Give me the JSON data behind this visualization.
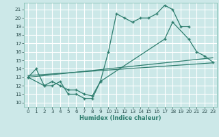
{
  "bg_color": "#cce8e8",
  "grid_color": "#ffffff",
  "line_color": "#2e7d6e",
  "xlabel": "Humidex (Indice chaleur)",
  "xlim": [
    -0.5,
    23.5
  ],
  "ylim": [
    9.5,
    21.8
  ],
  "xticks": [
    0,
    1,
    2,
    3,
    4,
    5,
    6,
    7,
    8,
    9,
    10,
    11,
    12,
    13,
    14,
    15,
    16,
    17,
    18,
    19,
    20,
    21,
    22,
    23
  ],
  "yticks": [
    10,
    11,
    12,
    13,
    14,
    15,
    16,
    17,
    18,
    19,
    20,
    21
  ],
  "line1_x": [
    0,
    1,
    2,
    3,
    4,
    5,
    6,
    7,
    8,
    9,
    10,
    11,
    12,
    13,
    14,
    15,
    16,
    17,
    18,
    19,
    20
  ],
  "line1_y": [
    13,
    14,
    12,
    12,
    12.5,
    11,
    11,
    10.5,
    10.5,
    12.5,
    16,
    20.5,
    20,
    19.5,
    20,
    20,
    20.5,
    21.5,
    21,
    19,
    19
  ],
  "line2_x": [
    0,
    2,
    3,
    4,
    5,
    6,
    7,
    8,
    9,
    17,
    18,
    20,
    21,
    22,
    23
  ],
  "line2_y": [
    13,
    12,
    12.5,
    12,
    11.5,
    11.5,
    11,
    10.8,
    12.5,
    17.5,
    19.5,
    17.5,
    16,
    15.5,
    14.8
  ],
  "line3_x": [
    0,
    23
  ],
  "line3_y": [
    13.0,
    15.3
  ],
  "line4_x": [
    0,
    23
  ],
  "line4_y": [
    13.2,
    14.7
  ]
}
